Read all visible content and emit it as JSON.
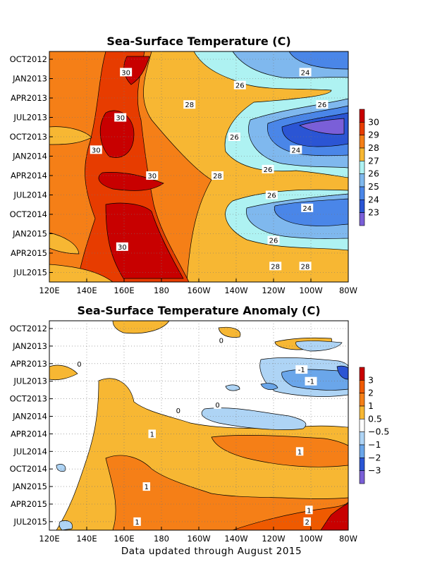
{
  "footer": "Data updated through August 2015",
  "chart_data": [
    {
      "type": "heatmap",
      "title": "Sea-Surface Temperature (C)",
      "x_ticks": [
        "120E",
        "140E",
        "160E",
        "180",
        "160W",
        "140W",
        "120W",
        "100W",
        "80W"
      ],
      "y_ticks": [
        "OCT2012",
        "JAN2013",
        "APR2013",
        "JUL2013",
        "OCT2013",
        "JAN2014",
        "APR2014",
        "JUL2014",
        "OCT2014",
        "JAN2015",
        "APR2015",
        "JUL2015"
      ],
      "colorbar": {
        "labels": [
          "30",
          "29",
          "28",
          "27",
          "26",
          "25",
          "24",
          "23"
        ],
        "colors": [
          "#c80000",
          "#e73c00",
          "#f57f17",
          "#f7b733",
          "#aef2f2",
          "#7fb8ee",
          "#4a86e8",
          "#2b55d4",
          "#7a5fd8"
        ]
      },
      "contour_labels": [
        {
          "text": "30",
          "lon": 161,
          "date": "2012-12"
        },
        {
          "text": "30",
          "lon": 158,
          "date": "2013-07"
        },
        {
          "text": "30",
          "lon": 145,
          "date": "2013-12"
        },
        {
          "text": "30",
          "lon": 175,
          "date": "2014-04"
        },
        {
          "text": "30",
          "lon": 159,
          "date": "2015-03"
        },
        {
          "text": "28",
          "lon": -165,
          "date": "2013-05"
        },
        {
          "text": "28",
          "lon": -150,
          "date": "2014-04"
        },
        {
          "text": "28",
          "lon": -119,
          "date": "2015-06"
        },
        {
          "text": "28",
          "lon": -103,
          "date": "2015-06"
        },
        {
          "text": "26",
          "lon": -138,
          "date": "2013-02"
        },
        {
          "text": "26",
          "lon": -141,
          "date": "2013-10"
        },
        {
          "text": "26",
          "lon": -123,
          "date": "2014-03"
        },
        {
          "text": "26",
          "lon": -121,
          "date": "2014-07"
        },
        {
          "text": "26",
          "lon": -120,
          "date": "2015-02"
        },
        {
          "text": "26",
          "lon": -94,
          "date": "2013-05"
        },
        {
          "text": "24",
          "lon": -103,
          "date": "2012-12"
        },
        {
          "text": "24",
          "lon": -108,
          "date": "2013-12"
        },
        {
          "text": "24",
          "lon": -102,
          "date": "2014-09"
        }
      ]
    },
    {
      "type": "heatmap",
      "title": "Sea-Surface Temperature Anomaly (C)",
      "x_ticks": [
        "120E",
        "140E",
        "160E",
        "180",
        "160W",
        "140W",
        "120W",
        "100W",
        "80W"
      ],
      "y_ticks": [
        "OCT2012",
        "JAN2013",
        "APR2013",
        "JUL2013",
        "OCT2013",
        "JAN2014",
        "APR2014",
        "JUL2014",
        "OCT2014",
        "JAN2015",
        "APR2015",
        "JUL2015"
      ],
      "colorbar": {
        "labels": [
          "3",
          "2",
          "1",
          "0.5",
          "−0.5",
          "−1",
          "−2",
          "−3"
        ],
        "colors": [
          "#c80000",
          "#ef5a00",
          "#f57f17",
          "#f7b733",
          "#ffffff",
          "#aed4f5",
          "#6aa6ea",
          "#2b55d4",
          "#7a5fd8"
        ]
      },
      "contour_labels": [
        {
          "text": "0",
          "lon": 136,
          "date": "2013-04"
        },
        {
          "text": "0",
          "lon": -171,
          "date": "2013-12"
        },
        {
          "text": "0",
          "lon": -148,
          "date": "2012-12"
        },
        {
          "text": "0",
          "lon": -150,
          "date": "2013-11"
        },
        {
          "text": "1",
          "lon": 175,
          "date": "2014-04"
        },
        {
          "text": "1",
          "lon": 172,
          "date": "2015-01"
        },
        {
          "text": "1",
          "lon": 167,
          "date": "2015-07"
        },
        {
          "text": "1",
          "lon": -106,
          "date": "2014-07"
        },
        {
          "text": "1",
          "lon": -101,
          "date": "2015-05"
        },
        {
          "text": "2",
          "lon": -102,
          "date": "2015-07"
        },
        {
          "text": "-1",
          "lon": -105,
          "date": "2013-05"
        },
        {
          "text": "-1",
          "lon": -100,
          "date": "2013-07"
        }
      ]
    }
  ]
}
